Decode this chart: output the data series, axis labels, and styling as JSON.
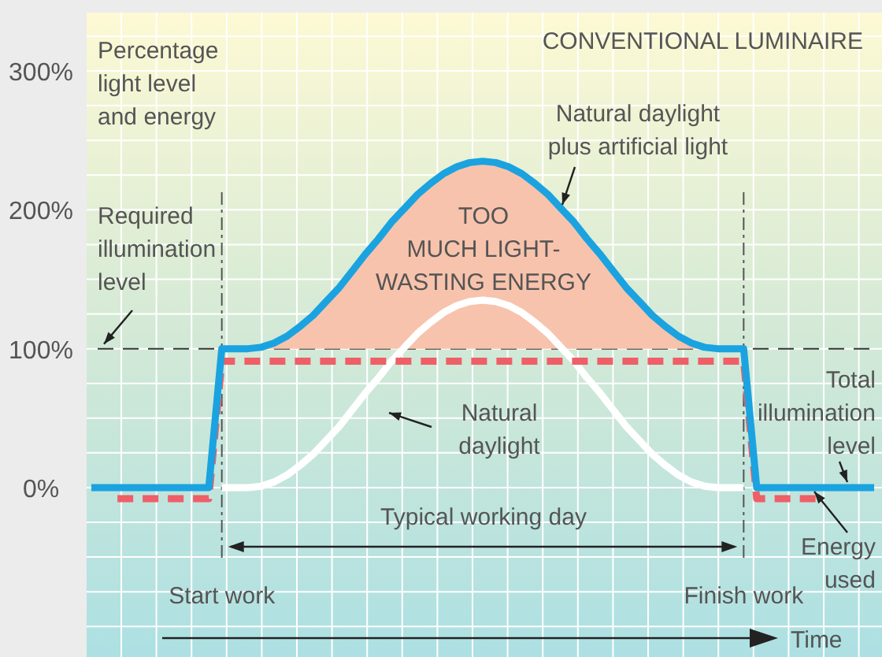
{
  "chart_data": {
    "type": "line",
    "title": "CONVENTIONAL LUMINAIRE",
    "ylabel": "Percentage\nlight level\nand energy",
    "xlabel": "Time",
    "categories": [
      null,
      null,
      null,
      null,
      null,
      null,
      null,
      null,
      null,
      null,
      null,
      null,
      null,
      null,
      null,
      null,
      null,
      null,
      null,
      null,
      null,
      null,
      null,
      null,
      null,
      null,
      null,
      null,
      null,
      null,
      null,
      null,
      null,
      null,
      null,
      null,
      null,
      null,
      null,
      null,
      null,
      null,
      null,
      null,
      null,
      null,
      null,
      null,
      null,
      null,
      null,
      null,
      null,
      null,
      null,
      null,
      null,
      null,
      null,
      null,
      null
    ],
    "ylim": [
      -122,
      342
    ],
    "yticks": [
      {
        "value": -100,
        "label": null
      },
      {
        "value": -75,
        "label": null
      },
      {
        "value": -50,
        "label": null
      },
      {
        "value": -25,
        "label": null
      },
      {
        "value": 0,
        "label": "0%"
      },
      {
        "value": 25,
        "label": null
      },
      {
        "value": 50,
        "label": null
      },
      {
        "value": 75,
        "label": null
      },
      {
        "value": 100,
        "label": "100%"
      },
      {
        "value": 125,
        "label": null
      },
      {
        "value": 150,
        "label": null
      },
      {
        "value": 175,
        "label": null
      },
      {
        "value": 200,
        "label": "200%"
      },
      {
        "value": 225,
        "label": null
      },
      {
        "value": 250,
        "label": null
      },
      {
        "value": 275,
        "label": null
      },
      {
        "value": 300,
        "label": "300%"
      },
      {
        "value": 325,
        "label": null
      }
    ],
    "grid": true,
    "tick_labels": "y",
    "series": [
      {
        "type": "area",
        "color": "#f8c3ac",
        "values": [
          null,
          null,
          null,
          null,
          null,
          null,
          null,
          null,
          null,
          null,
          100,
          100,
          100,
          101,
          104,
          109,
          116,
          124,
          134,
          144,
          156,
          168,
          179,
          191,
          201,
          211,
          219,
          226,
          231,
          234,
          235,
          234,
          231,
          226,
          219,
          211,
          201,
          191,
          179,
          168,
          156,
          144,
          134,
          124,
          116,
          109,
          104,
          101,
          100,
          100,
          100,
          null,
          null,
          null,
          null,
          null,
          null,
          null,
          null,
          null,
          null
        ]
      },
      {
        "color": "#ffffff",
        "line_style": "solid",
        "values": [
          null,
          null,
          null,
          null,
          null,
          null,
          null,
          null,
          null,
          null,
          0,
          0,
          0,
          1,
          4,
          9,
          16,
          24,
          34,
          44,
          56,
          68,
          79,
          91,
          101,
          111,
          119,
          126,
          131,
          134,
          135,
          134,
          131,
          126,
          119,
          111,
          101,
          91,
          79,
          68,
          56,
          44,
          34,
          24,
          16,
          9,
          4,
          1,
          0,
          0,
          0,
          null,
          null,
          null,
          null,
          null,
          null,
          null,
          null,
          null,
          null
        ]
      },
      {
        "color": "#ee5f67",
        "line_style": "dashed",
        "values": [
          null,
          null,
          -8,
          -8,
          -8,
          -8,
          -8,
          -8,
          -8,
          -8,
          91,
          91,
          91,
          91,
          91,
          91,
          91,
          91,
          91,
          91,
          91,
          91,
          91,
          91,
          91,
          91,
          91,
          91,
          91,
          91,
          91,
          91,
          91,
          91,
          91,
          91,
          91,
          91,
          91,
          91,
          91,
          91,
          91,
          91,
          91,
          91,
          91,
          91,
          91,
          91,
          91,
          -8,
          -8,
          -8,
          -8,
          -8,
          -8,
          null,
          null,
          null,
          null
        ]
      },
      {
        "color": "#1aa3e0",
        "line_style": "solid",
        "values": [
          0,
          0,
          0,
          0,
          0,
          0,
          0,
          0,
          0,
          0,
          100,
          100,
          100,
          101,
          104,
          109,
          116,
          124,
          134,
          144,
          156,
          168,
          179,
          191,
          201,
          211,
          219,
          226,
          231,
          234,
          235,
          234,
          231,
          226,
          219,
          211,
          201,
          191,
          179,
          168,
          156,
          144,
          134,
          124,
          116,
          109,
          104,
          101,
          100,
          100,
          100,
          0,
          0,
          0,
          0,
          0,
          0,
          0,
          0,
          0,
          0
        ]
      }
    ],
    "ref_lines": [
      {
        "axis": "y",
        "value": 100,
        "label": "Required\nillumination\nlevel",
        "line_style": "dashed",
        "color": "#333333"
      }
    ],
    "annotations": [
      "Natural daylight\nplus artificial light",
      "TOO\nMUCH LIGHT-\nWASTING ENERGY",
      "Natural\ndaylight",
      "Total\nillumination\nlevel",
      "Energy\nused",
      "Typical working day",
      "Start work",
      "Finish work"
    ]
  }
}
